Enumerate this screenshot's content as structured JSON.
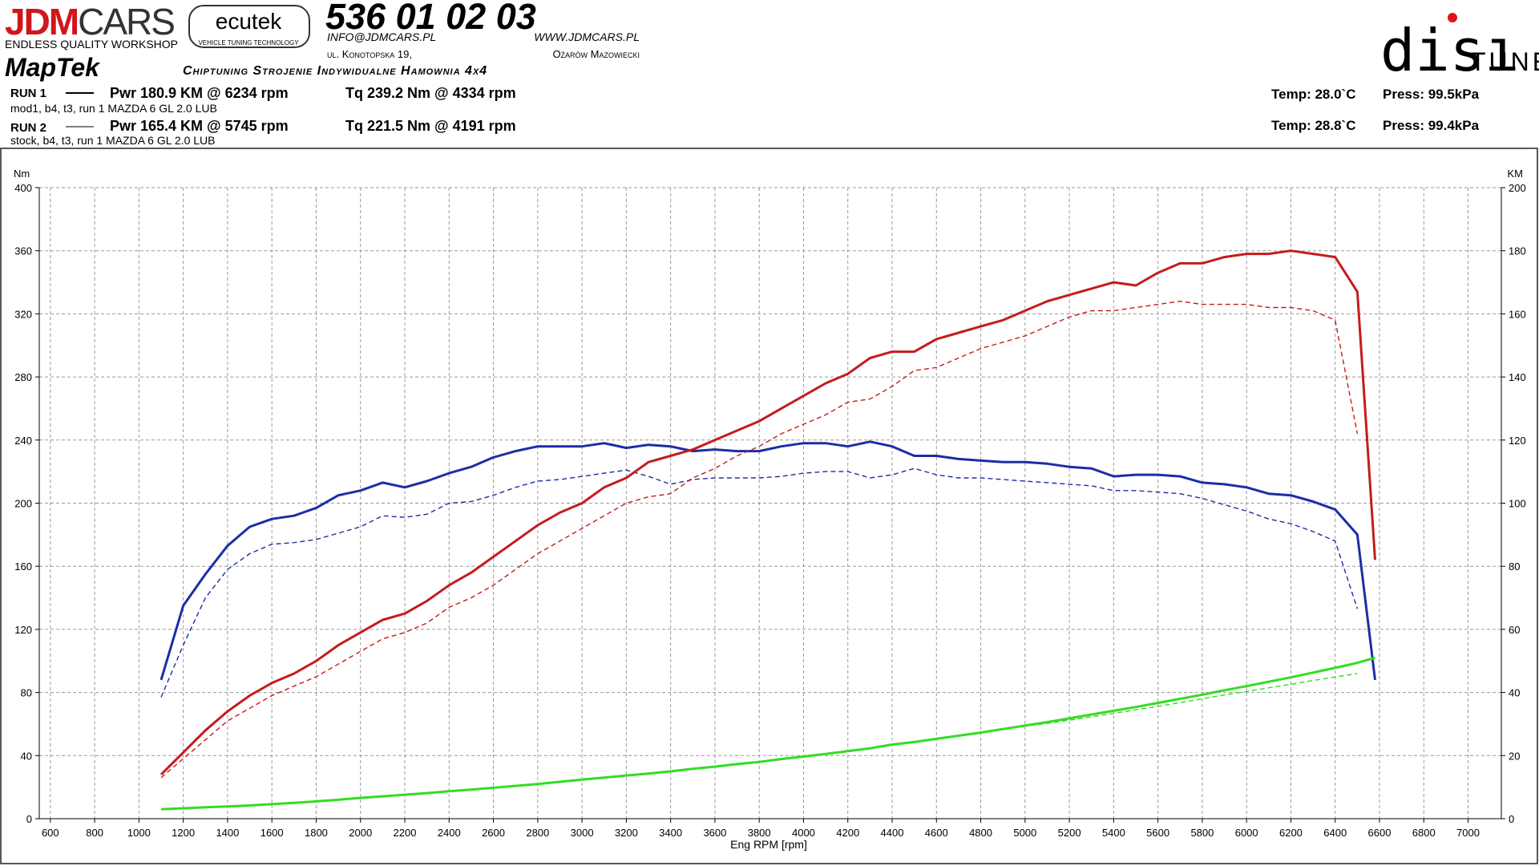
{
  "header": {
    "jdm": "JDM",
    "cars": "CARS",
    "tagline": "ENDLESS QUALITY WORKSHOP",
    "ecutek": "ecutek",
    "ecutek_tagline": "VEHICLE TUNING TECHNOLOGY",
    "phone": "536 01 02 03",
    "email": "INFO@JDMCARS.PL",
    "website": "WWW.JDMCARS.PL",
    "street": "ul. Konotopska 19,",
    "city": "Ożarów Mazowiecki",
    "maptek": "MapTek",
    "services": "Chiptuning Strojenie Indywidualne Hamownia 4x4",
    "disi": "disı",
    "tune": "TUNE"
  },
  "runs": [
    {
      "label": "RUN 1",
      "power": "Pwr 180.9 KM @ 6234 rpm",
      "torque": "Tq 239.2 Nm @ 4334 rpm",
      "description": "mod1, b4, t3, run 1 MAZDA 6 GL 2.0 LUB",
      "temp": "Temp: 28.0`C",
      "press": "Press: 99.5kPa"
    },
    {
      "label": "RUN 2",
      "power": "Pwr 165.4 KM @ 5745 rpm",
      "torque": "Tq 221.5 Nm @ 4191 rpm",
      "description": "stock, b4, t3, run 1 MAZDA 6 GL 2.0 LUB",
      "temp": "Temp: 28.8`C",
      "press": "Press: 99.4kPa"
    }
  ],
  "chart_data": {
    "type": "line",
    "xlabel": "Eng RPM [rpm]",
    "ylabel": "Nm",
    "y2label": "KM",
    "grid": true,
    "x": [
      1100,
      1200,
      1300,
      1400,
      1500,
      1600,
      1700,
      1800,
      1900,
      2000,
      2100,
      2200,
      2300,
      2400,
      2500,
      2600,
      2700,
      2800,
      2900,
      3000,
      3100,
      3200,
      3300,
      3400,
      3500,
      3600,
      3700,
      3800,
      3900,
      4000,
      4100,
      4200,
      4300,
      4400,
      4500,
      4600,
      4700,
      4800,
      4900,
      5000,
      5100,
      5200,
      5300,
      5400,
      5500,
      5600,
      5700,
      5800,
      5900,
      6000,
      6100,
      6200,
      6300,
      6400,
      6500,
      6580
    ],
    "xlim": [
      550,
      7150
    ],
    "xticks": [
      600,
      800,
      1000,
      1200,
      1400,
      1600,
      1800,
      2000,
      2200,
      2400,
      2600,
      2800,
      3000,
      3200,
      3400,
      3600,
      3800,
      4000,
      4200,
      4400,
      4600,
      4800,
      5000,
      5200,
      5400,
      5600,
      5800,
      6000,
      6200,
      6400,
      6600,
      6800,
      7000
    ],
    "ylim": [
      0,
      400
    ],
    "yticks": [
      0,
      40,
      80,
      120,
      160,
      200,
      240,
      280,
      320,
      360,
      400
    ],
    "y2lim": [
      0,
      200
    ],
    "y2ticks": [
      0,
      20,
      40,
      60,
      80,
      100,
      120,
      140,
      160,
      180,
      200
    ],
    "series": [
      {
        "color": "#1b2ea6",
        "dashed": false,
        "values": [
          88,
          135,
          155,
          173,
          185,
          190,
          192,
          197,
          205,
          208,
          213,
          210,
          214,
          219,
          223,
          229,
          233,
          236,
          236,
          236,
          238,
          235,
          237,
          236,
          233,
          234,
          233,
          233,
          236,
          238,
          238,
          236,
          239,
          236,
          230,
          230,
          228,
          227,
          226,
          226,
          225,
          223,
          222,
          217,
          218,
          218,
          217,
          213,
          212,
          210,
          206,
          205,
          201,
          196,
          180,
          88
        ]
      },
      {
        "color": "#1b2ea6",
        "dashed": true,
        "values": [
          77,
          110,
          140,
          158,
          168,
          174,
          175,
          177,
          181,
          185,
          192,
          191,
          193,
          200,
          201,
          205,
          210,
          214,
          215,
          217,
          219,
          221,
          217,
          212,
          215,
          216,
          216,
          216,
          217,
          219,
          220,
          220,
          216,
          218,
          222,
          218,
          216,
          216,
          215,
          214,
          213,
          212,
          211,
          208,
          208,
          207,
          206,
          203,
          199,
          195,
          190,
          187,
          182,
          176,
          133,
          null
        ]
      },
      {
        "color": "#c41c1c",
        "dashed": false,
        "axis": "y2",
        "values": [
          14,
          21,
          28,
          34,
          39,
          43,
          46,
          50,
          55,
          59,
          63,
          65,
          69,
          74,
          78,
          83,
          88,
          93,
          97,
          100,
          105,
          108,
          113,
          115,
          117,
          120,
          123,
          126,
          130,
          134,
          138,
          141,
          146,
          148,
          148,
          152,
          154,
          156,
          158,
          161,
          164,
          166,
          168,
          170,
          169,
          173,
          176,
          176,
          178,
          179,
          179,
          180,
          179,
          178,
          167,
          82
        ]
      },
      {
        "color": "#c41c1c",
        "dashed": true,
        "axis": "y2",
        "values": [
          13,
          19,
          25,
          31,
          35,
          39,
          42,
          45,
          49,
          53,
          57,
          59,
          62,
          67,
          70,
          74,
          79,
          84,
          88,
          92,
          96,
          100,
          102,
          103,
          108,
          111,
          115,
          118,
          122,
          125,
          128,
          132,
          133,
          137,
          142,
          143,
          146,
          149,
          151,
          153,
          156,
          159,
          161,
          161,
          162,
          163,
          164,
          163,
          163,
          163,
          162,
          162,
          161,
          158,
          122,
          null
        ]
      },
      {
        "color": "#33dd22",
        "dashed": false,
        "axis": "y2",
        "values": [
          3.0,
          3.3,
          3.6,
          3.9,
          4.2,
          4.6,
          5.0,
          5.5,
          6.0,
          6.6,
          7.1,
          7.6,
          8.1,
          8.7,
          9.2,
          9.8,
          10.4,
          11.0,
          11.7,
          12.4,
          13.0,
          13.7,
          14.3,
          15.0,
          15.8,
          16.5,
          17.3,
          18.0,
          18.9,
          19.7,
          20.5,
          21.4,
          22.3,
          23.5,
          24.3,
          25.3,
          26.3,
          27.3,
          28.4,
          29.5,
          30.6,
          31.8,
          33.0,
          34.2,
          35.4,
          36.7,
          38.0,
          39.3,
          40.7,
          42.0,
          43.4,
          44.8,
          46.3,
          47.8,
          49.4,
          51.0
        ]
      },
      {
        "color": "#33dd22",
        "dashed": true,
        "axis": "y2",
        "values": [
          3.0,
          3.3,
          3.6,
          3.9,
          4.2,
          4.6,
          5.0,
          5.5,
          6.0,
          6.6,
          7.1,
          7.6,
          8.1,
          8.7,
          9.2,
          9.8,
          10.4,
          11.0,
          11.7,
          12.4,
          13.0,
          13.7,
          14.3,
          15.0,
          15.8,
          16.5,
          17.3,
          18.0,
          18.9,
          19.7,
          20.5,
          21.4,
          22.3,
          23.5,
          24.3,
          25.3,
          26.3,
          27.3,
          28.4,
          29.3,
          30.2,
          31.2,
          32.3,
          33.4,
          34.5,
          35.6,
          36.8,
          38.0,
          39.2,
          40.3,
          41.5,
          42.6,
          43.8,
          44.9,
          46.0,
          null
        ]
      }
    ]
  }
}
